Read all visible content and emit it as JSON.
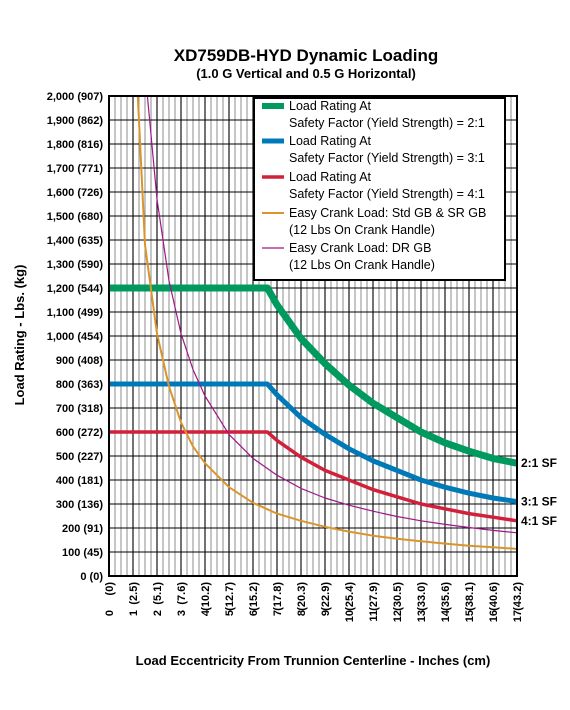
{
  "chart_data": {
    "type": "line",
    "title": "XD759DB-HYD Dynamic Loading",
    "subtitle": "(1.0 G Vertical and 0.5 G Horizontal)",
    "xlabel": "Load Eccentricity From Trunnion Centerline - Inches (cm)",
    "ylabel": "Load Rating - Lbs. (kg)",
    "xlim": [
      0,
      17
    ],
    "ylim": [
      0,
      2000
    ],
    "grid": true,
    "legend_position": "top-right",
    "x_ticks": [
      "0",
      "1",
      "2",
      "3",
      "4",
      "5",
      "6",
      "7",
      "8",
      "9",
      "10",
      "11",
      "12",
      "13",
      "14",
      "15",
      "16",
      "17"
    ],
    "x_ticks_cm": [
      "(0)",
      "(2.5)",
      "(5.1)",
      "(7.6)",
      "(10.2)",
      "(12.7)",
      "(15.2)",
      "(17.8)",
      "(20.3)",
      "(22.9)",
      "(25.4)",
      "(27.9)",
      "(30.5)",
      "(33.0)",
      "(35.6)",
      "(38.1)",
      "(40.6)",
      "(43.2)"
    ],
    "y_ticks": [
      "0 (0)",
      "100 (45)",
      "200 (91)",
      "300 (136)",
      "400 (181)",
      "500 (227)",
      "600 (272)",
      "700 (318)",
      "800 (363)",
      "900 (408)",
      "1,000 (454)",
      "1,100 (499)",
      "1,200 (544)",
      "1,300 (590)",
      "1,400 (635)",
      "1,500 (680)",
      "1,600 (726)",
      "1,700 (771)",
      "1,800 (816)",
      "1,900 (862)",
      "2,000 (907)"
    ],
    "series": [
      {
        "name": "Load Rating At Safety Factor (Yield Strength) = 2:1",
        "legend_lines": [
          "Load Rating At",
          "Safety Factor (Yield Strength) = 2:1"
        ],
        "end_label": "2:1 SF",
        "color": "#009a5e",
        "stroke": 7,
        "x": [
          0,
          6.6,
          7,
          8,
          9,
          10,
          11,
          12,
          13,
          14,
          15,
          16,
          17
        ],
        "y": [
          1200,
          1200,
          1130,
          990,
          885,
          795,
          720,
          660,
          600,
          555,
          520,
          490,
          470
        ]
      },
      {
        "name": "Load Rating At Safety Factor (Yield Strength) = 3:1",
        "legend_lines": [
          "Load Rating At",
          "Safety Factor (Yield Strength) = 3:1"
        ],
        "end_label": "3:1 SF",
        "color": "#0079b8",
        "stroke": 5,
        "x": [
          0,
          6.6,
          7,
          8,
          9,
          10,
          11,
          12,
          13,
          14,
          15,
          16,
          17
        ],
        "y": [
          800,
          800,
          755,
          660,
          590,
          530,
          480,
          440,
          400,
          370,
          345,
          325,
          310
        ]
      },
      {
        "name": "Load Rating At Safety Factor (Yield Strength) = 4:1",
        "legend_lines": [
          "Load Rating At",
          "Safety Factor (Yield Strength) = 4:1"
        ],
        "end_label": "4:1 SF",
        "color": "#d1203a",
        "stroke": 3.5,
        "x": [
          0,
          6.6,
          7,
          8,
          9,
          10,
          11,
          12,
          13,
          14,
          15,
          16,
          17
        ],
        "y": [
          600,
          600,
          565,
          495,
          440,
          400,
          360,
          330,
          300,
          280,
          260,
          245,
          230
        ]
      },
      {
        "name": "Easy Crank Load: Std GB & SR GB (12 Lbs On Crank Handle)",
        "legend_lines": [
          "Easy Crank Load: Std GB & SR  GB",
          "(12 Lbs On Crank Handle)"
        ],
        "end_label": "",
        "color": "#d9952b",
        "stroke": 2,
        "x": [
          1.2,
          1.5,
          2,
          2.5,
          3,
          3.5,
          4,
          5,
          6,
          7,
          8,
          9,
          10,
          11,
          12,
          13,
          14,
          15,
          16,
          17
        ],
        "y": [
          2000,
          1380,
          1010,
          790,
          640,
          540,
          470,
          370,
          305,
          260,
          230,
          205,
          185,
          168,
          155,
          145,
          135,
          126,
          120,
          113
        ]
      },
      {
        "name": "Easy Crank Load: DR GB (12 Lbs On Crank Handle)",
        "legend_lines": [
          "Easy Crank Load: DR GB",
          "(12 Lbs On Crank Handle)"
        ],
        "end_label": "",
        "color": "#a0168a",
        "stroke": 1.2,
        "x": [
          1.6,
          2,
          2.5,
          3,
          3.5,
          4,
          5,
          6,
          7,
          8,
          9,
          10,
          11,
          12,
          13,
          14,
          15,
          16,
          17
        ],
        "y": [
          2000,
          1570,
          1230,
          1010,
          860,
          750,
          590,
          490,
          420,
          365,
          325,
          295,
          270,
          248,
          230,
          215,
          202,
          190,
          180
        ]
      }
    ]
  }
}
